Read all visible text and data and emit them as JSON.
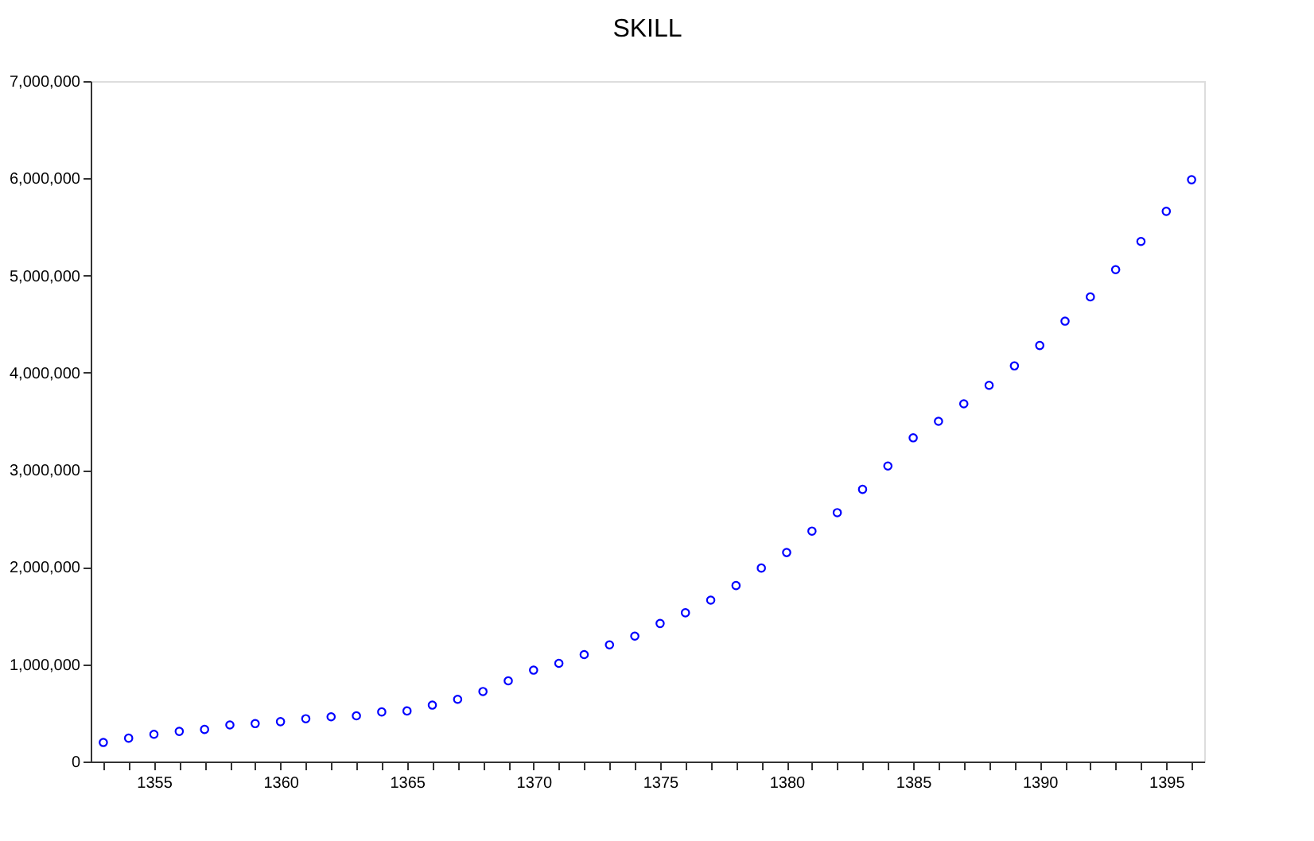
{
  "chart_data": {
    "type": "scatter",
    "title": "SKILL",
    "x": [
      1353,
      1354,
      1355,
      1356,
      1357,
      1358,
      1359,
      1360,
      1361,
      1362,
      1363,
      1364,
      1365,
      1366,
      1367,
      1368,
      1369,
      1370,
      1371,
      1372,
      1373,
      1374,
      1375,
      1376,
      1377,
      1378,
      1379,
      1380,
      1381,
      1382,
      1383,
      1384,
      1385,
      1386,
      1387,
      1388,
      1389,
      1390,
      1391,
      1392,
      1393,
      1394,
      1395,
      1396
    ],
    "series": [
      {
        "color": "#0000ff",
        "values": [
          196000,
          240000,
          280000,
          310000,
          330000,
          376000,
          390000,
          410000,
          440000,
          460000,
          470000,
          510000,
          520000,
          580000,
          640000,
          720000,
          830000,
          940000,
          1010000,
          1100000,
          1200000,
          1290000,
          1420000,
          1530000,
          1660000,
          1810000,
          1990000,
          2150000,
          2370000,
          2560000,
          2800000,
          3040000,
          3330000,
          3500000,
          3680000,
          3870000,
          4070000,
          4280000,
          4530000,
          4780000,
          5060000,
          5350000,
          5660000,
          5985000
        ]
      }
    ],
    "xlim": [
      1352.5,
      1396.5
    ],
    "xticks": [
      {
        "value": 1353,
        "label": null
      },
      {
        "value": 1354,
        "label": null
      },
      1355,
      {
        "value": 1356,
        "label": null
      },
      {
        "value": 1357,
        "label": null
      },
      {
        "value": 1358,
        "label": null
      },
      {
        "value": 1359,
        "label": null
      },
      1360,
      {
        "value": 1361,
        "label": null
      },
      {
        "value": 1362,
        "label": null
      },
      {
        "value": 1363,
        "label": null
      },
      {
        "value": 1364,
        "label": null
      },
      1365,
      {
        "value": 1366,
        "label": null
      },
      {
        "value": 1367,
        "label": null
      },
      {
        "value": 1368,
        "label": null
      },
      {
        "value": 1369,
        "label": null
      },
      1370,
      {
        "value": 1371,
        "label": null
      },
      {
        "value": 1372,
        "label": null
      },
      {
        "value": 1373,
        "label": null
      },
      {
        "value": 1374,
        "label": null
      },
      1375,
      {
        "value": 1376,
        "label": null
      },
      {
        "value": 1377,
        "label": null
      },
      {
        "value": 1378,
        "label": null
      },
      {
        "value": 1379,
        "label": null
      },
      1380,
      {
        "value": 1381,
        "label": null
      },
      {
        "value": 1382,
        "label": null
      },
      {
        "value": 1383,
        "label": null
      },
      {
        "value": 1384,
        "label": null
      },
      1385,
      {
        "value": 1386,
        "label": null
      },
      {
        "value": 1387,
        "label": null
      },
      {
        "value": 1388,
        "label": null
      },
      {
        "value": 1389,
        "label": null
      },
      1390,
      {
        "value": 1391,
        "label": null
      },
      {
        "value": 1392,
        "label": null
      },
      {
        "value": 1393,
        "label": null
      },
      {
        "value": 1394,
        "label": null
      },
      1395,
      {
        "value": 1396,
        "label": null
      }
    ],
    "ylim": [
      0,
      7000000
    ],
    "yticks": [
      {
        "value": 0,
        "label": "0"
      },
      {
        "value": 1000000,
        "label": "1,000,000"
      },
      {
        "value": 2000000,
        "label": "2,000,000"
      },
      {
        "value": 3000000,
        "label": "3,000,000"
      },
      {
        "value": 4000000,
        "label": "4,000,000"
      },
      {
        "value": 5000000,
        "label": "5,000,000"
      },
      {
        "value": 6000000,
        "label": "6,000,000"
      },
      {
        "value": 7000000,
        "label": "7,000,000"
      }
    ],
    "grid": false,
    "legend": false,
    "marker": "circle"
  }
}
